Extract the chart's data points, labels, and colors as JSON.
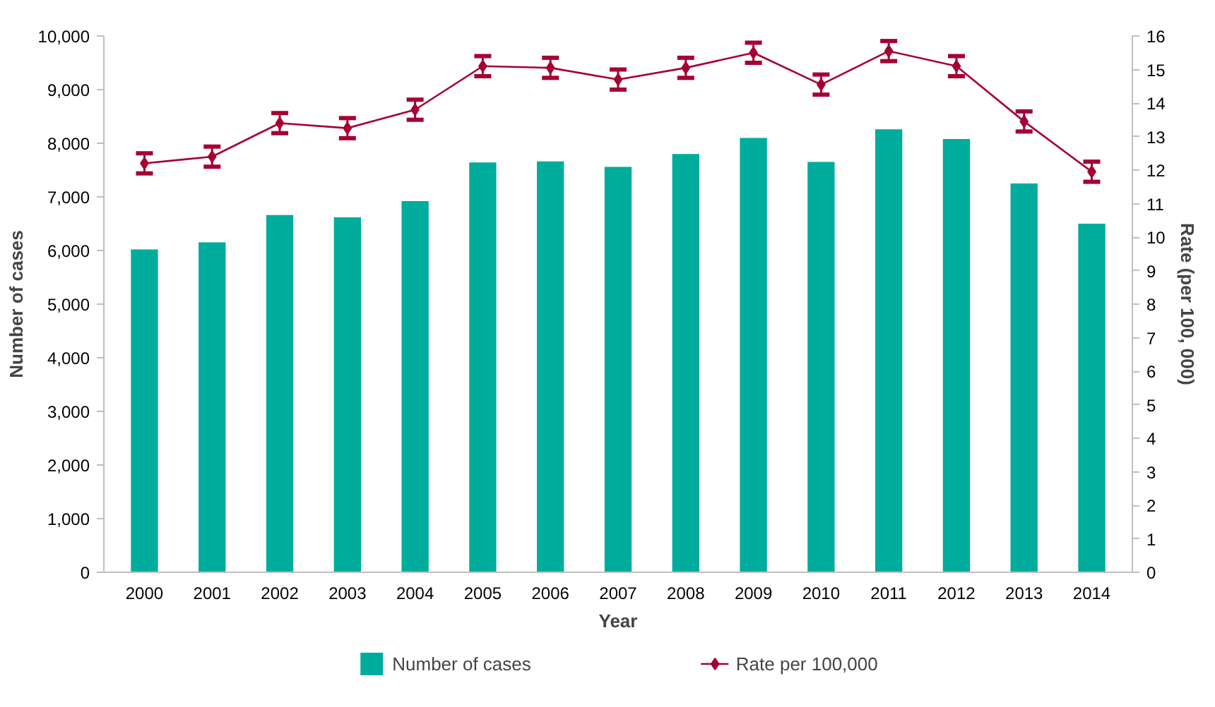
{
  "chart_data": {
    "type": "bar",
    "xlabel": "Year",
    "ylabel": "Number of cases",
    "y2label": "Rate (per 100, 000)",
    "categories": [
      "2000",
      "2001",
      "2002",
      "2003",
      "2004",
      "2005",
      "2006",
      "2007",
      "2008",
      "2009",
      "2010",
      "2011",
      "2012",
      "2013",
      "2014"
    ],
    "series": [
      {
        "name": "Number of cases",
        "color": "#00ac9c",
        "values": [
          6020,
          6150,
          6660,
          6620,
          6920,
          7640,
          7660,
          7560,
          7800,
          8100,
          7650,
          8260,
          8080,
          7250,
          6500
        ]
      },
      {
        "name": "Rate per 100,000",
        "color": "#a50034",
        "type": "line",
        "axis": "y2",
        "marker": "diamond",
        "values": [
          12.2,
          12.4,
          13.4,
          13.25,
          13.8,
          15.1,
          15.05,
          14.7,
          15.05,
          15.5,
          14.55,
          15.55,
          15.1,
          13.45,
          11.95
        ],
        "errors": [
          0.3,
          0.3,
          0.3,
          0.3,
          0.3,
          0.3,
          0.3,
          0.3,
          0.3,
          0.3,
          0.3,
          0.3,
          0.3,
          0.3,
          0.3
        ]
      }
    ],
    "ylim": [
      0,
      10000
    ],
    "yticks": [
      {
        "value": 0,
        "label": "0"
      },
      {
        "value": 1000,
        "label": "1,000"
      },
      {
        "value": 2000,
        "label": "2,000"
      },
      {
        "value": 3000,
        "label": "3,000"
      },
      {
        "value": 4000,
        "label": "4,000"
      },
      {
        "value": 5000,
        "label": "5,000"
      },
      {
        "value": 6000,
        "label": "6,000"
      },
      {
        "value": 7000,
        "label": "7,000"
      },
      {
        "value": 8000,
        "label": "8,000"
      },
      {
        "value": 9000,
        "label": "9,000"
      },
      {
        "value": 10000,
        "label": "10,000"
      }
    ],
    "y2lim": [
      0,
      16
    ],
    "y2ticks": [
      0,
      1,
      2,
      3,
      4,
      5,
      6,
      7,
      8,
      9,
      10,
      11,
      12,
      13,
      14,
      15,
      16
    ],
    "grid": false,
    "legend": "bottom"
  }
}
